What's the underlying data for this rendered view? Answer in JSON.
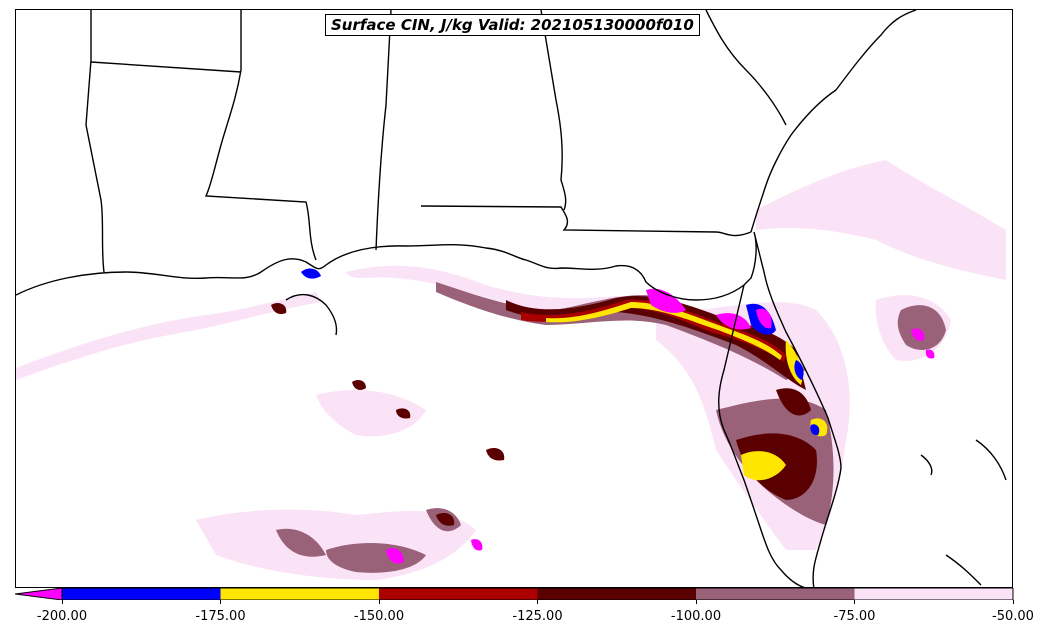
{
  "title": "Surface CIN, J/kg Valid: 202105130000f010",
  "colorbar": {
    "extend": "min",
    "under_color": "#ff00ff",
    "bins": [
      {
        "from": -200,
        "to": -175,
        "color": "#0000ff"
      },
      {
        "from": -175,
        "to": -150,
        "color": "#ffe600"
      },
      {
        "from": -150,
        "to": -125,
        "color": "#aa0000"
      },
      {
        "from": -125,
        "to": -100,
        "color": "#5a0000"
      },
      {
        "from": -100,
        "to": -75,
        "color": "#9a6278"
      },
      {
        "from": -75,
        "to": -50,
        "color": "#fbe3f7"
      }
    ],
    "ticks": [
      "-200.00",
      "-175.00",
      "-150.00",
      "-125.00",
      "-100.00",
      "-75.00",
      "-50.00"
    ]
  },
  "colors": {
    "coastline": "#000000",
    "background": "#ffffff"
  }
}
